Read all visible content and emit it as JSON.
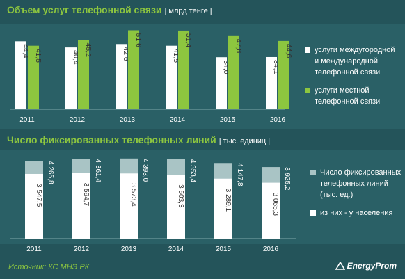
{
  "chart_data": [
    {
      "type": "bar",
      "title": "Объем услуг телефонной связи",
      "unit": "| млрд тенге |",
      "categories": [
        "2011",
        "2012",
        "2013",
        "2014",
        "2015",
        "2016"
      ],
      "series": [
        {
          "name": "услуги междугородной и международной телефонной связи",
          "values": [
            44.4,
            40.4,
            42.6,
            41.5,
            34.0,
            34.1
          ],
          "labels": [
            "44,4",
            "40,4",
            "42,6",
            "41,5",
            "34,0",
            "34,1"
          ]
        },
        {
          "name": "услуги местной телефонной связи",
          "values": [
            41.5,
            45.2,
            51.6,
            51.4,
            47.8,
            44.6
          ],
          "labels": [
            "41,5",
            "45,2",
            "51,6",
            "51,4",
            "47,8",
            "44,6"
          ]
        }
      ],
      "legend_placement": "right"
    },
    {
      "type": "bar",
      "title": "Число фиксированных телефонных линий",
      "unit": "| тыс. единиц |",
      "categories": [
        "2011",
        "2012",
        "2013",
        "2014",
        "2015",
        "2016"
      ],
      "series": [
        {
          "name": "Число фиксированных телефонных линий (тыс. ед.)",
          "values": [
            4265.8,
            4361.4,
            4393.0,
            4353.4,
            4147.8,
            3925.2
          ],
          "labels": [
            "4 265,8",
            "4 361,4",
            "4 393,0",
            "4 353,4",
            "4 147,8",
            "3 925,2"
          ]
        },
        {
          "name": "из них - у населения",
          "values": [
            3547.5,
            3594.7,
            3573.4,
            3503.3,
            3289.1,
            3065.3
          ],
          "labels": [
            "3 547,5",
            "3 594,7",
            "3 573,4",
            "3 503,3",
            "3 289,1",
            "3 065,3"
          ]
        }
      ],
      "legend_placement": "right"
    }
  ],
  "legend1": {
    "item1": "услуги междугородной",
    "item1b": "и международной",
    "item1c": "телефонной связи",
    "item2": "услуги местной",
    "item2b": "телефонной связи"
  },
  "legend2": {
    "item1": "Число фиксированных",
    "item1b": "телефонных линий",
    "item1c": "(тыс. ед.)",
    "item2": "из них - у населения"
  },
  "footer": {
    "source": "Источник: КС МНЭ РК",
    "logo": "EnergyProm"
  },
  "colors": {
    "background": "#24545a",
    "panel": "#2a6066",
    "white_bar": "#ffffff",
    "green_bar": "#8dc63f",
    "total_bar": "#a9c4c5",
    "title": "#8dc63f"
  }
}
